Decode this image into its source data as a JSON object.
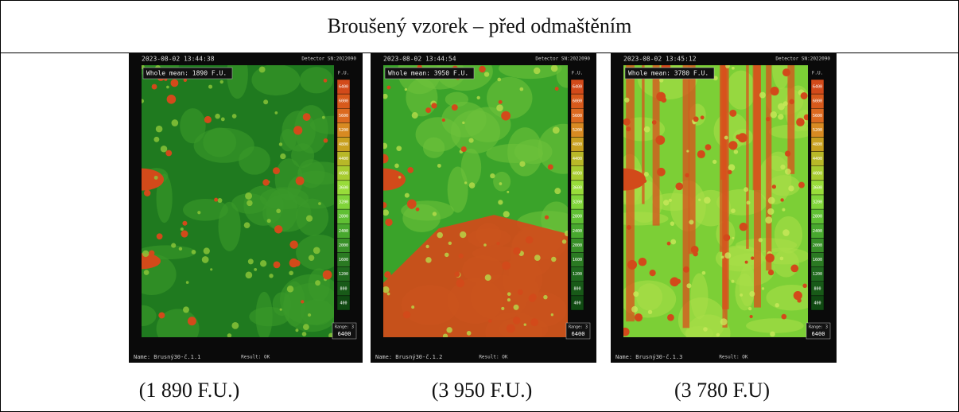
{
  "header": {
    "title": "Broušený vzorek – před odmaštěním"
  },
  "scale": [
    "6400",
    "6000",
    "5600",
    "5200",
    "4800",
    "4400",
    "4000",
    "3600",
    "3200",
    "2800",
    "2400",
    "2000",
    "1600",
    "1200",
    "800",
    "400"
  ],
  "images": [
    {
      "timestamp": "2023-08-02 13:44:38",
      "detector": "Detector SN:2022090",
      "mean": "Whole mean: 1890 F.U.",
      "unit": "F.U.",
      "range_label": "Range: 3",
      "range_value": "6400",
      "name": "Name: Brusný30-č.1.1",
      "result": "Result: OK",
      "caption": "(1 890 F.U.)"
    },
    {
      "timestamp": "2023-08-02 13:44:54",
      "detector": "Detector SN:2022090",
      "mean": "Whole mean: 3950 F.U.",
      "unit": "F.U.",
      "range_label": "Range: 3",
      "range_value": "6400",
      "name": "Name: Brusný30-č.1.2",
      "result": "Result: OK",
      "caption": "(3 950 F.U.)"
    },
    {
      "timestamp": "2023-08-02 13:45:12",
      "detector": "Detector SN:2022090",
      "mean": "Whole mean: 3780 F.U.",
      "unit": "F.U.",
      "range_label": "Range: 3",
      "range_value": "6400",
      "name": "Name: Brusný30-č.1.3",
      "result": "Result: OK",
      "caption": "(3 780 F.U)"
    }
  ]
}
